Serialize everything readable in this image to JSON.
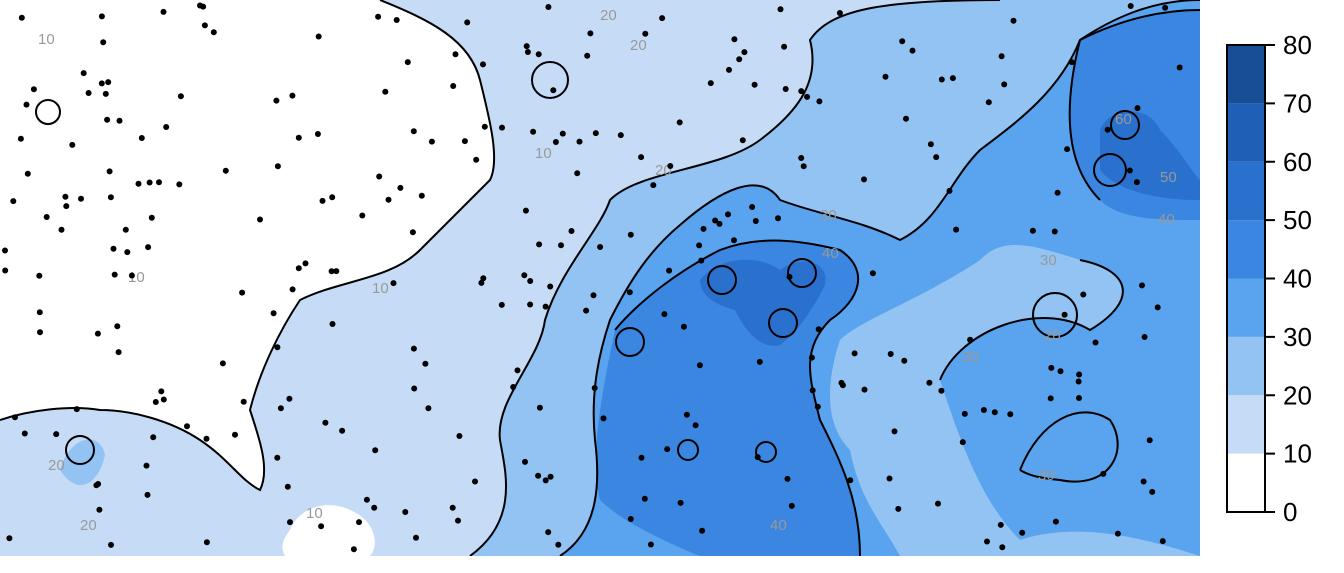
{
  "chart_data": {
    "type": "heatmap",
    "subtype": "filled-contour",
    "title": "",
    "xlabel": "",
    "ylabel": "",
    "levels": [
      0,
      10,
      20,
      30,
      40,
      50,
      60,
      70,
      80
    ],
    "legend_ticks": [
      "0",
      "10",
      "20",
      "30",
      "40",
      "50",
      "60",
      "70",
      "80"
    ],
    "legend_position": "right",
    "level_colors": [
      "#ffffff",
      "#c6dcf6",
      "#92c3f3",
      "#5aa3ee",
      "#3b86e0",
      "#2a70cd",
      "#1f5fb5",
      "#184e96",
      "#133e78"
    ],
    "contour_labels": [
      {
        "text": "10"
      },
      {
        "text": "20"
      },
      {
        "text": "10"
      },
      {
        "text": "20"
      },
      {
        "text": "10"
      },
      {
        "text": "10"
      },
      {
        "text": "30"
      },
      {
        "text": "40"
      },
      {
        "text": "20"
      },
      {
        "text": "30"
      },
      {
        "text": "30"
      },
      {
        "text": "20"
      },
      {
        "text": "30"
      },
      {
        "text": "40"
      },
      {
        "text": "10"
      },
      {
        "text": "20"
      },
      {
        "text": "40"
      },
      {
        "text": "50"
      },
      {
        "text": "60"
      },
      {
        "text": "20"
      }
    ],
    "grid": false
  },
  "colors": {
    "line": "#000000",
    "label": "#999999",
    "background": "#ffffff"
  }
}
